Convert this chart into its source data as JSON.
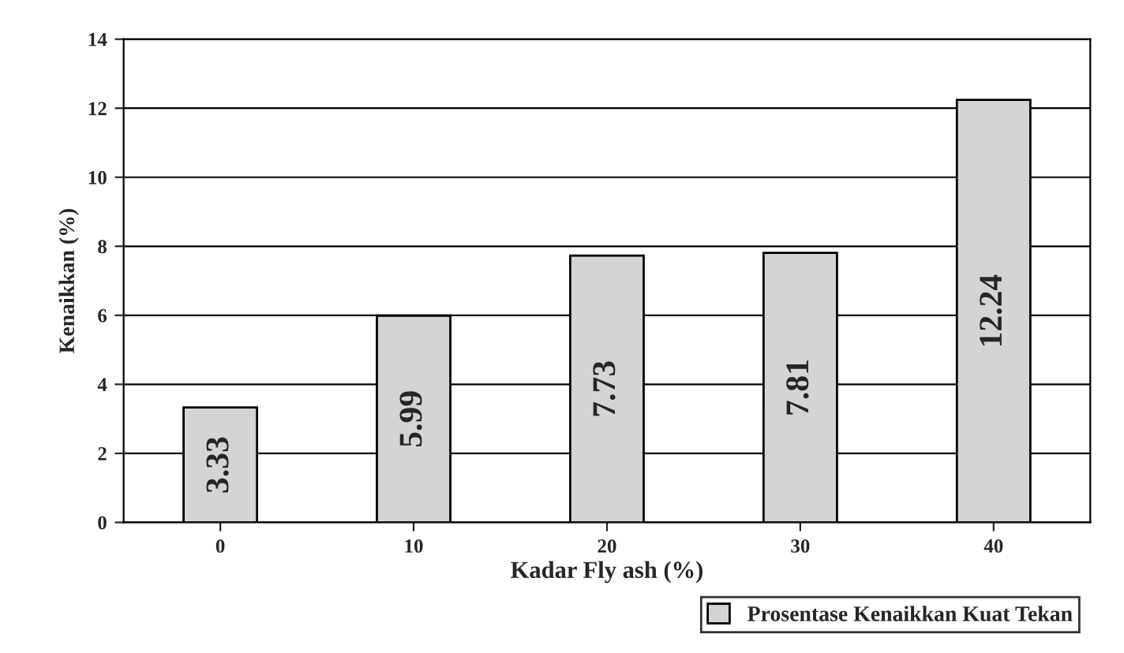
{
  "chart_data": {
    "type": "bar",
    "xlabel": "Kadar Fly ash (%)",
    "ylabel": "Kenaikkan (%)",
    "categories": [
      "0",
      "10",
      "20",
      "30",
      "40"
    ],
    "series": [
      {
        "name": "Prosentase Kenaikkan Kuat Tekan",
        "color": "#d4d4d4",
        "values": [
          3.33,
          5.99,
          7.73,
          7.81,
          12.24
        ]
      }
    ],
    "ylim": [
      0,
      14
    ],
    "yticks": [
      0,
      2,
      4,
      6,
      8,
      10,
      12,
      14
    ],
    "grid": "y",
    "data_labels": true,
    "legend": "bottom right"
  }
}
